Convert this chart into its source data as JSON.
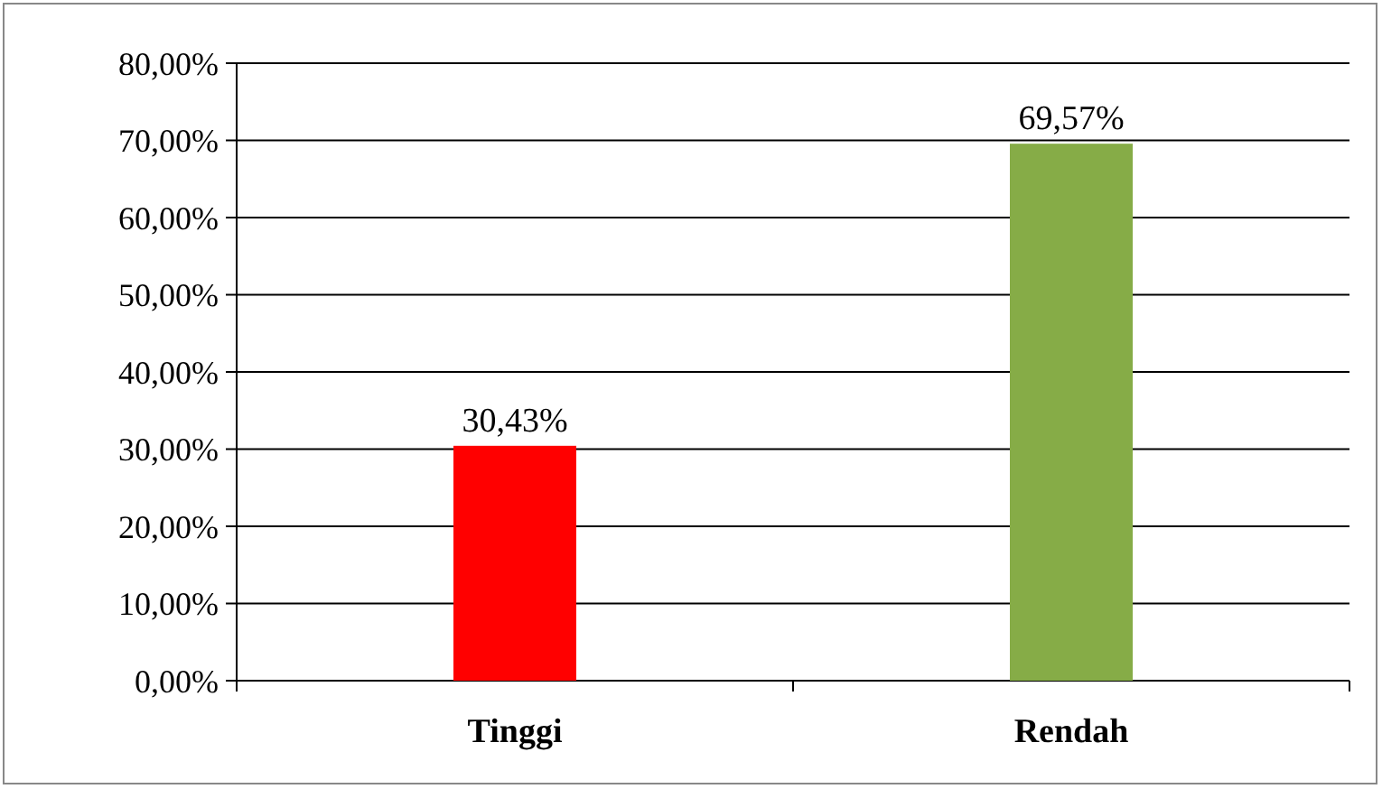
{
  "chart_data": {
    "type": "bar",
    "categories": [
      "Tinggi",
      "Rendah"
    ],
    "values": [
      30.43,
      69.57
    ],
    "colors": [
      "#ff0000",
      "#86ac47"
    ],
    "value_labels": [
      "30,43%",
      "69,57%"
    ],
    "ylim": [
      0,
      80
    ],
    "yticks": [
      {
        "value": 0,
        "label": "0,00%"
      },
      {
        "value": 10,
        "label": "10,00%"
      },
      {
        "value": 20,
        "label": "20,00%"
      },
      {
        "value": 30,
        "label": "30,00%"
      },
      {
        "value": 40,
        "label": "40,00%"
      },
      {
        "value": 50,
        "label": "50,00%"
      },
      {
        "value": 60,
        "label": "60,00%"
      },
      {
        "value": 70,
        "label": "70,00%"
      },
      {
        "value": 80,
        "label": "80,00%"
      }
    ],
    "grid": "y"
  }
}
